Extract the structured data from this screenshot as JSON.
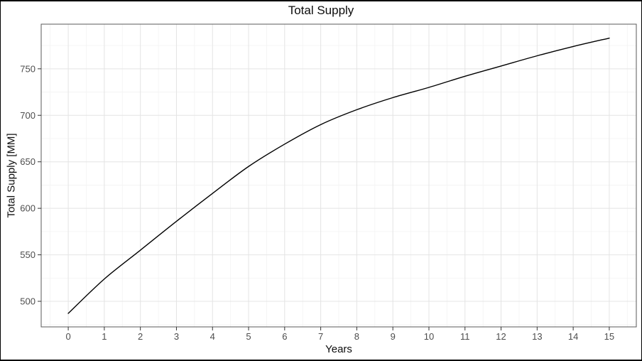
{
  "title": "Total Supply",
  "chart_data": {
    "type": "line",
    "title": "Total Supply",
    "xlabel": "Years",
    "ylabel": "Total Supply [MM]",
    "x": [
      0,
      1,
      2,
      3,
      4,
      5,
      6,
      7,
      8,
      9,
      10,
      11,
      12,
      13,
      14,
      15
    ],
    "values": [
      487,
      524,
      555,
      586,
      616,
      645,
      669,
      690,
      706,
      719,
      730,
      742,
      753,
      764,
      774,
      783
    ],
    "xlim": [
      -0.75,
      15.75
    ],
    "ylim": [
      472.5,
      798
    ],
    "x_ticks": [
      0,
      1,
      2,
      3,
      4,
      5,
      6,
      7,
      8,
      9,
      10,
      11,
      12,
      13,
      14,
      15
    ],
    "y_ticks": [
      500,
      550,
      600,
      650,
      700,
      750
    ],
    "x_minor_step": 0.5,
    "y_minor_step": 25,
    "grid": true,
    "legend": false,
    "line_color": "#000000",
    "colors": {
      "background": "#ffffff",
      "panel_border": "#595959",
      "major_grid": "#e4e4e4",
      "minor_grid": "#f3f3f3",
      "tick_mark": "#333333",
      "tick_label": "#4d4d4d",
      "text": "#0d0d0d"
    }
  }
}
